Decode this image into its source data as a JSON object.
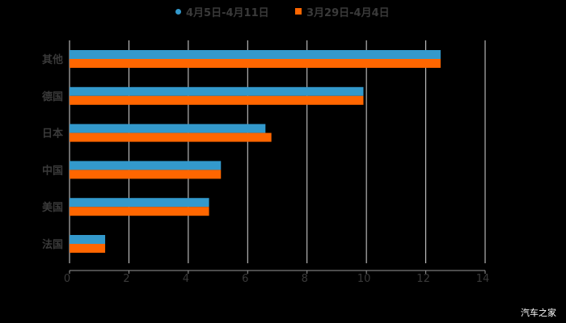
{
  "legend": {
    "series1": {
      "label": "4月5日-4月11日",
      "color": "#3399cc"
    },
    "series2": {
      "label": "3月29日-4月4日",
      "color": "#ff6600"
    }
  },
  "watermark": "汽车之家",
  "chart_data": {
    "type": "bar",
    "orientation": "horizontal",
    "title": "",
    "xlabel": "",
    "ylabel": "",
    "categories": [
      "其他",
      "德国",
      "日本",
      "中国",
      "美国",
      "法国"
    ],
    "series": [
      {
        "name": "4月5日-4月11日",
        "color": "#3399cc",
        "values": [
          12.5,
          9.9,
          6.6,
          5.1,
          4.7,
          1.2
        ]
      },
      {
        "name": "3月29日-4月4日",
        "color": "#ff6600",
        "values": [
          12.5,
          9.9,
          6.8,
          5.1,
          4.7,
          1.2
        ]
      }
    ],
    "xlim": [
      0,
      14
    ],
    "xticks": [
      0,
      2,
      4,
      6,
      8,
      10,
      12,
      14
    ],
    "grid": true,
    "legend_position": "top"
  }
}
